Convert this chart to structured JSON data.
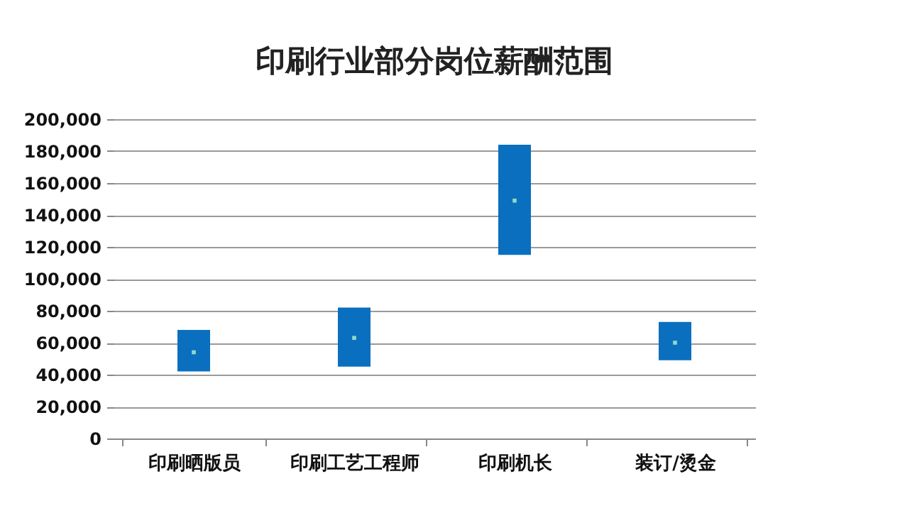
{
  "chart_data": {
    "type": "bar",
    "title": "印刷行业部分岗位薪酬范围",
    "categories": [
      "印刷晒版员",
      "印刷工艺工程师",
      "印刷机长",
      "装订/烫金"
    ],
    "series": [
      {
        "type": "bar",
        "color": "#0b6fbf",
        "base": [
          42000,
          45000,
          115000,
          49000
        ],
        "values": [
          26000,
          37000,
          69000,
          24000
        ]
      },
      {
        "type": "scatter",
        "color": "#8fd8c8",
        "x": [
          "印刷晒版员",
          "印刷工艺工程师",
          "印刷机长",
          "装订/烫金"
        ],
        "values": [
          54000,
          63000,
          149000,
          60000
        ]
      }
    ],
    "ylim": [
      0,
      200000
    ],
    "yticks": [
      {
        "value": 0,
        "label": "0"
      },
      {
        "value": 20000,
        "label": "20,000"
      },
      {
        "value": 40000,
        "label": "40,000"
      },
      {
        "value": 60000,
        "label": "60,000"
      },
      {
        "value": 80000,
        "label": "80,000"
      },
      {
        "value": 100000,
        "label": "100,000"
      },
      {
        "value": 120000,
        "label": "120,000"
      },
      {
        "value": 140000,
        "label": "140,000"
      },
      {
        "value": 160000,
        "label": "160,000"
      },
      {
        "value": 180000,
        "label": "180,000"
      },
      {
        "value": 200000,
        "label": "200,000"
      }
    ],
    "grid": "y",
    "marker": "square"
  }
}
